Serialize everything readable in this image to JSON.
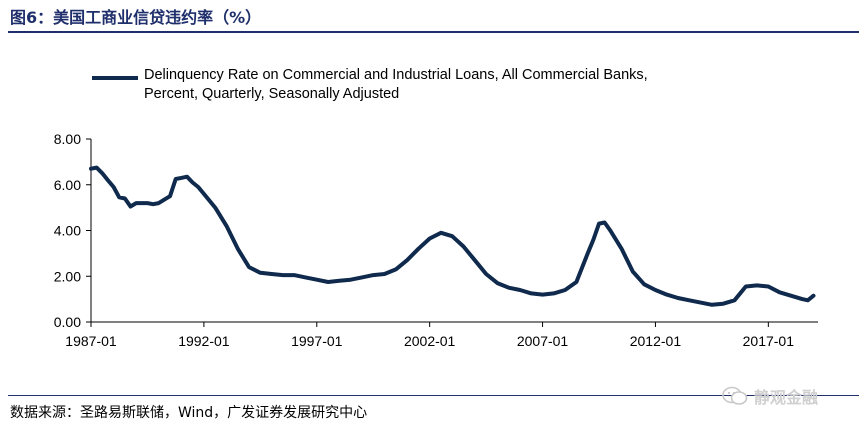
{
  "header": {
    "title": "图6：美国工商业信贷违约率（%）"
  },
  "footer": {
    "source": "数据来源：圣路易斯联储，Wind，广发证券发展研究中心",
    "watermark": "静观金融"
  },
  "chart_data": {
    "type": "line",
    "legend_text": "Delinquency Rate on Commercial and Industrial Loans, All Commercial Banks,\nPercent, Quarterly, Seasonally Adjusted",
    "legend_position": "top",
    "series": [
      {
        "name": "Delinquency Rate on Commercial and Industrial Loans, All Commercial Banks, Percent, Quarterly, Seasonally Adjusted",
        "color": "#0f2a4d",
        "x": [
          1987.0,
          1987.25,
          1987.5,
          1987.75,
          1988.0,
          1988.25,
          1988.5,
          1988.75,
          1989.0,
          1989.25,
          1989.5,
          1989.75,
          1990.0,
          1990.25,
          1990.5,
          1990.75,
          1991.0,
          1991.25,
          1991.5,
          1991.75,
          1992.0,
          1992.5,
          1993.0,
          1993.5,
          1994.0,
          1994.5,
          1995.0,
          1995.5,
          1996.0,
          1996.5,
          1997.0,
          1997.5,
          1998.0,
          1998.5,
          1999.0,
          1999.5,
          2000.0,
          2000.5,
          2001.0,
          2001.5,
          2002.0,
          2002.5,
          2003.0,
          2003.5,
          2004.0,
          2004.5,
          2005.0,
          2005.5,
          2006.0,
          2006.5,
          2007.0,
          2007.5,
          2008.0,
          2008.5,
          2009.0,
          2009.25,
          2009.5,
          2009.75,
          2010.0,
          2010.5,
          2011.0,
          2011.5,
          2012.0,
          2012.5,
          2013.0,
          2013.5,
          2014.0,
          2014.5,
          2015.0,
          2015.5,
          2016.0,
          2016.5,
          2017.0,
          2017.5,
          2018.0,
          2018.5,
          2018.75,
          2019.0
        ],
        "values": [
          6.7,
          6.75,
          6.5,
          6.2,
          5.9,
          5.45,
          5.4,
          5.05,
          5.2,
          5.2,
          5.2,
          5.15,
          5.2,
          5.35,
          5.5,
          6.25,
          6.3,
          6.35,
          6.1,
          5.9,
          5.6,
          5.0,
          4.2,
          3.2,
          2.4,
          2.15,
          2.1,
          2.05,
          2.05,
          1.95,
          1.85,
          1.75,
          1.8,
          1.85,
          1.95,
          2.05,
          2.1,
          2.3,
          2.7,
          3.2,
          3.65,
          3.9,
          3.75,
          3.3,
          2.7,
          2.1,
          1.7,
          1.5,
          1.4,
          1.25,
          1.2,
          1.25,
          1.4,
          1.75,
          3.0,
          3.6,
          4.3,
          4.35,
          4.0,
          3.2,
          2.2,
          1.65,
          1.4,
          1.2,
          1.05,
          0.95,
          0.85,
          0.75,
          0.8,
          0.95,
          1.55,
          1.6,
          1.55,
          1.3,
          1.15,
          1.0,
          0.95,
          1.15
        ]
      }
    ],
    "xlim": [
      1987.0,
      2019.2
    ],
    "ylim": [
      0,
      8
    ],
    "y_ticks": [
      0,
      2,
      4,
      6,
      8
    ],
    "y_tick_labels": [
      "0.00",
      "2.00",
      "4.00",
      "6.00",
      "8.00"
    ],
    "x_ticks": [
      1987.0,
      1992.0,
      1997.0,
      2002.0,
      2007.0,
      2012.0,
      2017.0
    ],
    "x_tick_labels": [
      "1987-01",
      "1992-01",
      "1997-01",
      "2002-01",
      "2007-01",
      "2012-01",
      "2017-01"
    ],
    "grid": false
  }
}
